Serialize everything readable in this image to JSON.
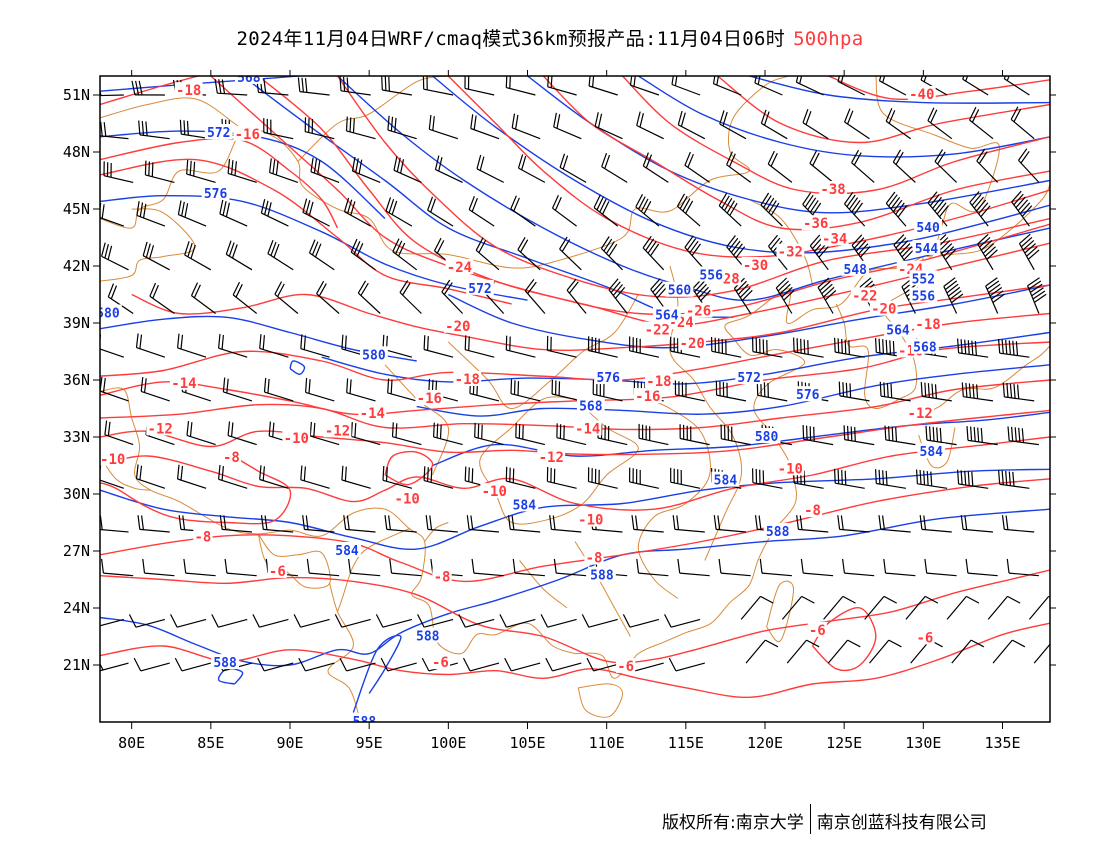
{
  "title": {
    "text": "2024年11月04日WRF/cmaq模式36km预报产品:11月04日06时",
    "level": "500hpa"
  },
  "credit": {
    "left": "版权所有:南京大学",
    "right": "南京创蓝科技有限公司"
  },
  "colors": {
    "temperature": "#ff3b3b",
    "height": "#1a3fe6",
    "border": "#d98a3a",
    "wind": "#000000",
    "title_level": "#ff3b3b"
  },
  "axes": {
    "x_ticks": [
      "80E",
      "85E",
      "90E",
      "95E",
      "100E",
      "105E",
      "110E",
      "115E",
      "120E",
      "125E",
      "130E",
      "135E"
    ],
    "x_values": [
      80,
      85,
      90,
      95,
      100,
      105,
      110,
      115,
      120,
      125,
      130,
      135
    ],
    "y_ticks": [
      "51N",
      "48N",
      "45N",
      "42N",
      "39N",
      "36N",
      "33N",
      "30N",
      "27N",
      "24N",
      "21N"
    ],
    "y_values": [
      51,
      48,
      45,
      42,
      39,
      36,
      33,
      30,
      27,
      24,
      21
    ],
    "lon_range": [
      78,
      138
    ],
    "lat_range": [
      18,
      52
    ]
  },
  "temperature_labels": [
    {
      "t": "-18",
      "lon": 83.6,
      "lat": 51.2
    },
    {
      "t": "-16",
      "lon": 87.3,
      "lat": 48.9
    },
    {
      "t": "-40",
      "lon": 129.9,
      "lat": 51.0
    },
    {
      "t": "-38",
      "lon": 124.3,
      "lat": 46.0
    },
    {
      "t": "-36",
      "lon": 123.2,
      "lat": 44.2
    },
    {
      "t": "-34",
      "lon": 124.4,
      "lat": 43.4
    },
    {
      "t": "-32",
      "lon": 121.6,
      "lat": 42.7
    },
    {
      "t": "-30",
      "lon": 119.4,
      "lat": 42.0
    },
    {
      "t": "-28",
      "lon": 117.6,
      "lat": 41.3
    },
    {
      "t": "-24",
      "lon": 100.7,
      "lat": 41.9
    },
    {
      "t": "-24",
      "lon": 129.2,
      "lat": 41.8
    },
    {
      "t": "-22",
      "lon": 126.3,
      "lat": 40.4
    },
    {
      "t": "-20",
      "lon": 127.5,
      "lat": 39.7
    },
    {
      "t": "-18",
      "lon": 130.3,
      "lat": 38.9
    },
    {
      "t": "-16",
      "lon": 129.2,
      "lat": 37.5
    },
    {
      "t": "-26",
      "lon": 115.8,
      "lat": 39.6
    },
    {
      "t": "-24",
      "lon": 114.7,
      "lat": 39.0
    },
    {
      "t": "-22",
      "lon": 113.2,
      "lat": 38.6
    },
    {
      "t": "-20",
      "lon": 115.4,
      "lat": 37.9
    },
    {
      "t": "-20",
      "lon": 100.6,
      "lat": 38.8
    },
    {
      "t": "-18",
      "lon": 101.2,
      "lat": 36.0
    },
    {
      "t": "-18",
      "lon": 113.3,
      "lat": 35.9
    },
    {
      "t": "-16",
      "lon": 98.8,
      "lat": 35.0
    },
    {
      "t": "-16",
      "lon": 112.6,
      "lat": 35.1
    },
    {
      "t": "-14",
      "lon": 83.3,
      "lat": 35.8
    },
    {
      "t": "-14",
      "lon": 95.2,
      "lat": 34.2
    },
    {
      "t": "-14",
      "lon": 108.8,
      "lat": 33.4
    },
    {
      "t": "-12",
      "lon": 81.8,
      "lat": 33.4
    },
    {
      "t": "-12",
      "lon": 93.0,
      "lat": 33.3
    },
    {
      "t": "-12",
      "lon": 129.8,
      "lat": 34.2
    },
    {
      "t": "-12",
      "lon": 106.5,
      "lat": 31.9
    },
    {
      "t": "-10",
      "lon": 78.8,
      "lat": 31.8
    },
    {
      "t": "-10",
      "lon": 90.4,
      "lat": 32.9
    },
    {
      "t": "-10",
      "lon": 97.4,
      "lat": 29.7
    },
    {
      "t": "-10",
      "lon": 102.9,
      "lat": 30.1
    },
    {
      "t": "-10",
      "lon": 109.0,
      "lat": 28.6
    },
    {
      "t": "-10",
      "lon": 121.6,
      "lat": 31.3
    },
    {
      "t": "-8",
      "lon": 86.3,
      "lat": 31.9
    },
    {
      "t": "-8",
      "lon": 84.5,
      "lat": 27.7
    },
    {
      "t": "-8",
      "lon": 123.0,
      "lat": 29.1
    },
    {
      "t": "-8",
      "lon": 109.2,
      "lat": 26.6
    },
    {
      "t": "-8",
      "lon": 99.6,
      "lat": 25.6
    },
    {
      "t": "-6",
      "lon": 89.2,
      "lat": 25.9
    },
    {
      "t": "-6",
      "lon": 99.5,
      "lat": 21.1
    },
    {
      "t": "-6",
      "lon": 111.2,
      "lat": 20.9
    },
    {
      "t": "-6",
      "lon": 123.3,
      "lat": 22.8
    },
    {
      "t": "-6",
      "lon": 130.1,
      "lat": 22.4
    }
  ],
  "height_labels": [
    {
      "t": "568",
      "lon": 87.4,
      "lat": 51.9
    },
    {
      "t": "572",
      "lon": 85.5,
      "lat": 49.0
    },
    {
      "t": "576",
      "lon": 85.3,
      "lat": 45.8
    },
    {
      "t": "580",
      "lon": 78.5,
      "lat": 39.5
    },
    {
      "t": "580",
      "lon": 95.3,
      "lat": 37.3
    },
    {
      "t": "572",
      "lon": 102.0,
      "lat": 40.8
    },
    {
      "t": "576",
      "lon": 110.1,
      "lat": 36.1
    },
    {
      "t": "568",
      "lon": 109.0,
      "lat": 34.6
    },
    {
      "t": "560",
      "lon": 114.6,
      "lat": 40.7
    },
    {
      "t": "556",
      "lon": 116.6,
      "lat": 41.5
    },
    {
      "t": "564",
      "lon": 113.8,
      "lat": 39.4
    },
    {
      "t": "572",
      "lon": 119.0,
      "lat": 36.1
    },
    {
      "t": "576",
      "lon": 122.7,
      "lat": 35.2
    },
    {
      "t": "580",
      "lon": 120.1,
      "lat": 33.0
    },
    {
      "t": "584",
      "lon": 117.5,
      "lat": 30.7
    },
    {
      "t": "584",
      "lon": 130.5,
      "lat": 32.2
    },
    {
      "t": "584",
      "lon": 104.8,
      "lat": 29.4
    },
    {
      "t": "584",
      "lon": 93.6,
      "lat": 27.0
    },
    {
      "t": "588",
      "lon": 120.8,
      "lat": 28.0
    },
    {
      "t": "588",
      "lon": 109.7,
      "lat": 25.7
    },
    {
      "t": "588",
      "lon": 98.7,
      "lat": 22.5
    },
    {
      "t": "588",
      "lon": 85.9,
      "lat": 21.1
    },
    {
      "t": "588",
      "lon": 94.7,
      "lat": 18.0
    },
    {
      "t": "540",
      "lon": 130.3,
      "lat": 44.0
    },
    {
      "t": "544",
      "lon": 130.2,
      "lat": 42.9
    },
    {
      "t": "548",
      "lon": 125.7,
      "lat": 41.8
    },
    {
      "t": "552",
      "lon": 130.0,
      "lat": 41.3
    },
    {
      "t": "556",
      "lon": 130.0,
      "lat": 40.4
    },
    {
      "t": "564",
      "lon": 128.4,
      "lat": 38.6
    },
    {
      "t": "568",
      "lon": 130.1,
      "lat": 37.7
    }
  ]
}
